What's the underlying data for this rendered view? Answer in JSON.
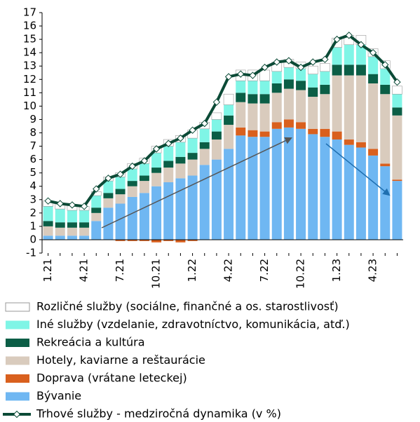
{
  "chart_data": {
    "type": "bar",
    "categories": [
      "1.21",
      null,
      null,
      "4.21",
      null,
      null,
      "7.21",
      null,
      null,
      "10.21",
      null,
      null,
      "1.22",
      null,
      null,
      "4.22",
      null,
      null,
      "7.22",
      null,
      null,
      "10.22",
      null,
      null,
      "1.23",
      null,
      null,
      "4.23",
      null,
      null
    ],
    "series": [
      {
        "name": "Rozličné služby (sociálne, finančné a os. starostlivosť)",
        "type": "bar",
        "color": "#ffffff",
        "values": [
          0.4,
          0.4,
          0.4,
          0.3,
          0.3,
          0.3,
          0.3,
          0.4,
          0.4,
          0.5,
          0.5,
          0.5,
          0.6,
          0.5,
          0.5,
          0.8,
          0.8,
          0.8,
          0.8,
          0.7,
          0.6,
          0.5,
          0.6,
          0.6,
          0.7,
          0.7,
          0.7,
          0.6,
          0.6,
          0.6
        ]
      },
      {
        "name": "Iné služby (vzdelanie, zdravotníctvo, komunikácia, atď.)",
        "type": "bar",
        "color": "#7ff5e6",
        "values": [
          1.1,
          1.0,
          0.9,
          0.9,
          0.9,
          0.9,
          0.9,
          0.9,
          0.9,
          1.1,
          1.1,
          1.1,
          1.1,
          1.0,
          0.9,
          0.8,
          0.9,
          1.0,
          1.0,
          0.9,
          0.9,
          0.9,
          1.0,
          1.0,
          1.3,
          1.5,
          1.5,
          1.3,
          1.2,
          1.0
        ]
      },
      {
        "name": "Rekreácia a kultúra",
        "type": "bar",
        "color": "#0b5e46",
        "values": [
          0.4,
          0.4,
          0.4,
          0.4,
          0.4,
          0.4,
          0.4,
          0.4,
          0.4,
          0.4,
          0.5,
          0.5,
          0.5,
          0.5,
          0.6,
          0.7,
          0.7,
          0.7,
          0.7,
          0.7,
          0.7,
          0.7,
          0.7,
          0.7,
          0.8,
          0.8,
          0.8,
          0.7,
          0.7,
          0.6
        ]
      },
      {
        "name": "Hotely, kaviarne a reštaurácie",
        "type": "bar",
        "color": "#d9cbbd",
        "values": [
          0.7,
          0.6,
          0.6,
          0.6,
          0.6,
          0.7,
          0.7,
          0.8,
          0.9,
          1.0,
          1.1,
          1.1,
          1.2,
          1.2,
          1.5,
          1.8,
          1.9,
          2.0,
          2.1,
          2.2,
          2.3,
          2.4,
          2.4,
          2.6,
          4.2,
          4.8,
          5.0,
          4.9,
          5.2,
          4.8
        ]
      },
      {
        "name": "Doprava (vrátane leteckej)",
        "type": "bar",
        "color": "#d9601e",
        "values": [
          0,
          0,
          0,
          0,
          0,
          0,
          -0.1,
          -0.1,
          -0.1,
          -0.2,
          -0.1,
          -0.2,
          -0.1,
          0,
          0,
          0,
          0.6,
          0.5,
          0.4,
          0.5,
          0.6,
          0.5,
          0.4,
          0.6,
          0.6,
          0.4,
          0.4,
          0.5,
          0.2,
          0.1
        ]
      },
      {
        "name": "Bývanie",
        "type": "bar",
        "color": "#6fb7f2",
        "values": [
          0.3,
          0.3,
          0.3,
          0.3,
          1.4,
          2.4,
          2.7,
          3.2,
          3.5,
          4.0,
          4.3,
          4.6,
          4.8,
          5.6,
          6.0,
          6.8,
          7.8,
          7.7,
          7.7,
          8.3,
          8.4,
          8.3,
          7.9,
          7.7,
          7.5,
          7.1,
          6.9,
          6.3,
          5.5,
          4.4
        ]
      },
      {
        "name": "Trhové služby - medziročná dynamika (v %)",
        "type": "line",
        "color": "#0b4a36",
        "values": [
          2.9,
          2.7,
          2.6,
          2.5,
          3.8,
          4.6,
          4.9,
          5.5,
          5.9,
          6.8,
          7.2,
          7.6,
          8.2,
          8.7,
          10.3,
          12.2,
          12.4,
          12.3,
          12.9,
          13.3,
          13.4,
          12.9,
          13.3,
          13.5,
          15.0,
          15.3,
          14.6,
          14.0,
          13.1,
          11.8
        ]
      }
    ],
    "ylim": [
      -1,
      17
    ],
    "yticks": [
      -1,
      0,
      1,
      2,
      3,
      4,
      5,
      6,
      7,
      8,
      9,
      10,
      11,
      12,
      13,
      14,
      15,
      16,
      17
    ]
  }
}
